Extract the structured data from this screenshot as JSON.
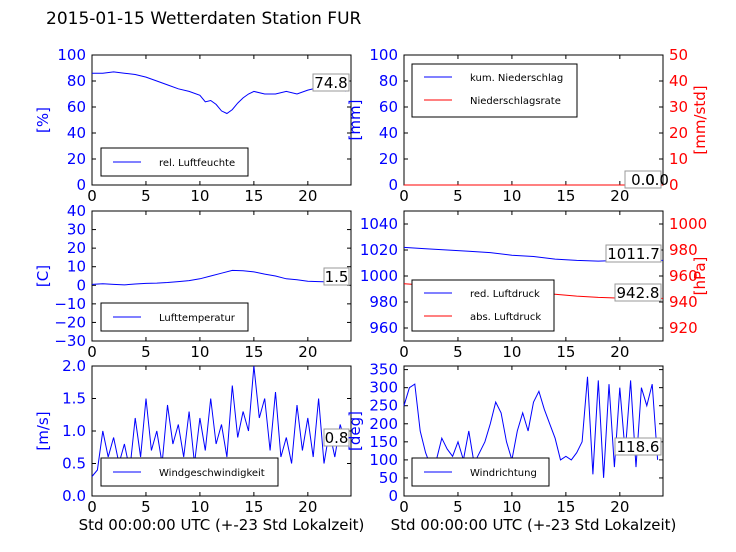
{
  "figure": {
    "title": "2015-01-15 Wetterdaten Station FUR"
  },
  "colors": {
    "primary": "#0000ff",
    "secondary": "#ff0000",
    "axis": "#000000"
  },
  "chart_data": [
    {
      "id": "humidity",
      "type": "line",
      "x": [
        0,
        1,
        2,
        3,
        4,
        5,
        6,
        7,
        8,
        9,
        10,
        10.5,
        11,
        11.5,
        12,
        12.5,
        13,
        13.5,
        14,
        14.5,
        15,
        16,
        17,
        18,
        19,
        20,
        21,
        22,
        23,
        23.5
      ],
      "series": [
        {
          "name": "rel. Luftfeuchte",
          "color": "#0000ff",
          "values": [
            86,
            86,
            87,
            86,
            85,
            83,
            80,
            77,
            74,
            72,
            69,
            64,
            65,
            62,
            57,
            55,
            58,
            63,
            67,
            70,
            72,
            70,
            70,
            72,
            70,
            73,
            75,
            76,
            75,
            72
          ]
        }
      ],
      "current_value": "74.8",
      "xlim": [
        0,
        24
      ],
      "xticks": [
        "0",
        "5",
        "10",
        "15",
        "20"
      ],
      "ylim": [
        0,
        100
      ],
      "yticks": [
        "0",
        "20",
        "40",
        "60",
        "80",
        "100"
      ],
      "ylabel": "[%]",
      "xlabel": "",
      "legend": "lower-left"
    },
    {
      "id": "precipitation",
      "type": "line",
      "x": [
        0,
        24
      ],
      "series": [
        {
          "name": "kum. Niederschlag",
          "color": "#0000ff",
          "values": [
            0,
            0
          ]
        },
        {
          "name": "Niederschlagsrate",
          "color": "#ff0000",
          "values": [
            0,
            0
          ]
        }
      ],
      "current_value": "0.0",
      "current_value_2": "0.0",
      "xlim": [
        0,
        24
      ],
      "xticks": [
        "0",
        "5",
        "10",
        "15",
        "20"
      ],
      "ylim": [
        0,
        100
      ],
      "yticks": [
        "0",
        "20",
        "40",
        "60",
        "80",
        "100"
      ],
      "ylabel": "[mm]",
      "ylim2": [
        0,
        50
      ],
      "yticks2": [
        "0",
        "10",
        "20",
        "30",
        "40",
        "50"
      ],
      "ylabel2": "[mm/std]",
      "xlabel": "",
      "legend": "upper-left"
    },
    {
      "id": "temperature",
      "type": "line",
      "x": [
        0,
        1,
        2,
        3,
        4,
        5,
        6,
        7,
        8,
        9,
        10,
        11,
        12,
        13,
        14,
        15,
        16,
        17,
        18,
        19,
        20,
        21,
        22,
        23,
        23.5
      ],
      "series": [
        {
          "name": "Lufttemperatur",
          "color": "#0000ff",
          "values": [
            0.5,
            0.8,
            0.5,
            0.2,
            0.7,
            1.0,
            1.2,
            1.5,
            2.0,
            2.5,
            3.5,
            5.0,
            6.5,
            8.0,
            7.8,
            7.2,
            6.0,
            5.0,
            3.5,
            3.0,
            2.2,
            2.0,
            1.8,
            1.5,
            1.5
          ]
        }
      ],
      "current_value": "1.5",
      "xlim": [
        0,
        24
      ],
      "xticks": [
        "0",
        "5",
        "10",
        "15",
        "20"
      ],
      "ylim": [
        -30,
        40
      ],
      "yticks": [
        "−30",
        "−20",
        "−10",
        "0",
        "10",
        "20",
        "30",
        "40"
      ],
      "ylabel": "[C]",
      "xlabel": "",
      "legend": "lower-left"
    },
    {
      "id": "pressure",
      "type": "line",
      "x": [
        0,
        2,
        4,
        6,
        8,
        10,
        12,
        14,
        16,
        18,
        20,
        22,
        24
      ],
      "series": [
        {
          "name": "red. Luftdruck",
          "color": "#0000ff",
          "values": [
            1022,
            1021,
            1020,
            1019,
            1018,
            1016,
            1015,
            1013,
            1012,
            1011.5,
            1012,
            1012,
            1012
          ]
        },
        {
          "name": "abs. Luftdruck",
          "color": "#ff0000",
          "values": [
            954,
            953,
            952,
            951,
            950,
            948.5,
            947.5,
            946,
            944.5,
            943.5,
            943,
            942.8,
            942.8
          ]
        }
      ],
      "current_value": "1011.7",
      "current_value_2": "942.8",
      "xlim": [
        0,
        24
      ],
      "xticks": [
        "0",
        "5",
        "10",
        "15",
        "20"
      ],
      "ylim": [
        950,
        1050
      ],
      "yticks": [
        "960",
        "980",
        "1000",
        "1020",
        "1040"
      ],
      "ylabel": "",
      "ylim2": [
        910,
        1010
      ],
      "yticks2": [
        "920",
        "940",
        "960",
        "980",
        "1000"
      ],
      "ylabel2": "[hPa]",
      "xlabel": "",
      "legend": "lower-left"
    },
    {
      "id": "windspeed",
      "type": "line",
      "x": [
        0,
        0.5,
        1,
        1.5,
        2,
        2.5,
        3,
        3.5,
        4,
        4.5,
        5,
        5.5,
        6,
        6.5,
        7,
        7.5,
        8,
        8.5,
        9,
        9.5,
        10,
        10.5,
        11,
        11.5,
        12,
        12.5,
        13,
        13.5,
        14,
        14.5,
        15,
        15.5,
        16,
        16.5,
        17,
        17.5,
        18,
        18.5,
        19,
        19.5,
        20,
        20.5,
        21,
        21.5,
        22,
        22.5,
        23,
        23.5
      ],
      "series": [
        {
          "name": "Windgeschwindigkeit",
          "color": "#0000ff",
          "values": [
            0.3,
            0.4,
            1.0,
            0.6,
            0.9,
            0.5,
            0.8,
            0.4,
            1.2,
            0.6,
            1.5,
            0.7,
            1.0,
            0.5,
            1.4,
            0.8,
            1.1,
            0.6,
            1.3,
            0.5,
            1.2,
            0.7,
            1.5,
            0.8,
            1.1,
            0.6,
            1.7,
            0.9,
            1.3,
            1.0,
            2.0,
            1.2,
            1.5,
            0.7,
            1.6,
            0.6,
            0.9,
            0.5,
            1.4,
            0.7,
            1.2,
            0.6,
            1.5,
            0.5,
            1.0,
            0.6,
            1.1,
            0.8
          ]
        }
      ],
      "current_value": "0.8",
      "xlim": [
        0,
        24
      ],
      "xticks": [
        "0",
        "5",
        "10",
        "15",
        "20"
      ],
      "ylim": [
        0,
        2.0
      ],
      "yticks": [
        "0.0",
        "0.5",
        "1.0",
        "1.5",
        "2.0"
      ],
      "ylabel": "[m/s]",
      "xlabel": "Std 00:00:00 UTC (+-23 Std Lokalzeit)",
      "legend": "lower-left"
    },
    {
      "id": "winddirection",
      "type": "line",
      "x": [
        0,
        0.5,
        1,
        1.5,
        2,
        2.5,
        3,
        3.5,
        4,
        4.5,
        5,
        5.5,
        6,
        6.5,
        7,
        7.5,
        8,
        8.5,
        9,
        9.5,
        10,
        10.5,
        11,
        11.5,
        12,
        12.5,
        13,
        13.5,
        14,
        14.5,
        15,
        15.5,
        16,
        16.5,
        17,
        17.5,
        18,
        18.5,
        19,
        19.5,
        20,
        20.5,
        21,
        21.5,
        22,
        22.5,
        23,
        23.5
      ],
      "series": [
        {
          "name": "Windrichtung",
          "color": "#0000ff",
          "values": [
            250,
            300,
            310,
            180,
            120,
            80,
            100,
            160,
            130,
            110,
            150,
            100,
            180,
            90,
            120,
            150,
            200,
            260,
            230,
            150,
            100,
            180,
            230,
            180,
            260,
            290,
            240,
            200,
            160,
            100,
            110,
            100,
            120,
            150,
            330,
            60,
            320,
            50,
            310,
            80,
            300,
            120,
            320,
            80,
            300,
            250,
            310,
            100
          ]
        }
      ],
      "current_value": "118.6",
      "xlim": [
        0,
        24
      ],
      "xticks": [
        "0",
        "5",
        "10",
        "15",
        "20"
      ],
      "ylim": [
        0,
        360
      ],
      "yticks": [
        "0",
        "50",
        "100",
        "150",
        "200",
        "250",
        "300",
        "350"
      ],
      "ylabel": "[deg]",
      "xlabel": "Std 00:00:00 UTC (+-23 Std Lokalzeit)",
      "legend": "lower-left"
    }
  ]
}
